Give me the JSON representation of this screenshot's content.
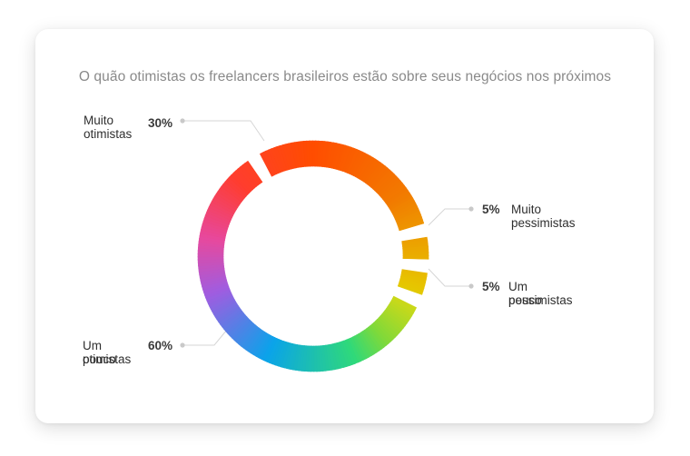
{
  "chart_data": {
    "type": "pie",
    "title": "O quão otimistas os freelancers brasileiros estão sobre seus negócios nos próximos",
    "categories": [
      "Muito otimistas",
      "Muito pessimistas",
      "Um pouco pessimistas",
      "Um pouco otimistas"
    ],
    "values": [
      30,
      5,
      5,
      60
    ],
    "value_labels": [
      "30%",
      "5%",
      "5%",
      "60%"
    ],
    "label_lines": [
      [
        "Muito",
        "otimistas"
      ],
      [
        "Muito",
        "pessimistas"
      ],
      [
        "Um pouco",
        "pessimistas"
      ],
      [
        "Um pouco",
        "otimistas"
      ]
    ],
    "colors": {
      "muito_otimistas": "#ff4d00",
      "gold": "#e6c700",
      "muito_pessimistas": "#c8d91a",
      "um_pouco_pessimistas": "#7fd93a",
      "green": "#2fd97a",
      "blue": "#0aa3ea",
      "purple": "#a05ce0",
      "pink": "#e8489c",
      "red": "#ff3d2e"
    },
    "style": "donut"
  }
}
